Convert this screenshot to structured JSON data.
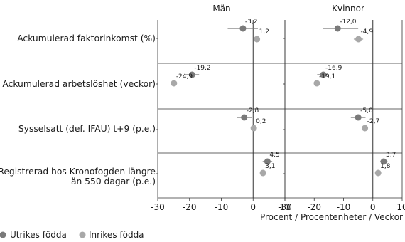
{
  "chart_data": {
    "type": "scatter",
    "panels": [
      "Män",
      "Kvinnor"
    ],
    "rows": [
      [
        "Ackumulerad faktorinkomst (%)"
      ],
      [
        "Ackumulerad arbetslöshet (veckor)"
      ],
      [
        "Sysselsatt (def. IFAU) t+9 (p.e.)"
      ],
      [
        "Registrerad hos Kronofogden längre",
        "än 550 dagar (p.e.)"
      ]
    ],
    "series": [
      {
        "name": "Utrikes födda",
        "color": "#7a7a7a",
        "values": [
          [
            -3.2,
            -12.0
          ],
          [
            -19.2,
            -16.9
          ],
          [
            -2.8,
            -5.0
          ],
          [
            4.5,
            3.7
          ]
        ],
        "labels": [
          [
            "-3,2",
            "-12,0"
          ],
          [
            "-19,2",
            "-16,9"
          ],
          [
            "-2,8",
            "-5,0"
          ],
          [
            "4,5",
            "3,7"
          ]
        ],
        "ci": [
          [
            [
              -8,
              1.5
            ],
            [
              -17,
              -5
            ]
          ],
          [
            [
              -21.5,
              -17
            ],
            [
              -19,
              -15
            ]
          ],
          [
            [
              -5,
              -0.5
            ],
            [
              -7.5,
              -2.5
            ]
          ],
          [
            [
              3,
              6
            ],
            [
              2.5,
              5
            ]
          ]
        ]
      },
      {
        "name": "Inrikes födda",
        "color": "#a8a8a8",
        "values": [
          [
            1.2,
            -4.9
          ],
          [
            -24.9,
            -19.1
          ],
          [
            0.2,
            -2.7
          ],
          [
            3.1,
            1.8
          ]
        ],
        "labels": [
          [
            "1,2",
            "-4,9"
          ],
          [
            "-24,9",
            "-19,1"
          ],
          [
            "0,2",
            "-2,7"
          ],
          [
            "3,1",
            "1,8"
          ]
        ],
        "ci": [
          [
            [
              0.3,
              2.1
            ],
            [
              -6.5,
              -3.3
            ]
          ],
          [
            [
              -25.7,
              -24.1
            ],
            [
              -19.9,
              -18.3
            ]
          ],
          [
            [
              -0.6,
              1.0
            ],
            [
              -3.5,
              -1.9
            ]
          ],
          [
            [
              2.3,
              3.9
            ],
            [
              1.0,
              2.6
            ]
          ]
        ]
      }
    ],
    "xticks": [
      -30,
      -20,
      -10,
      0,
      10
    ],
    "xlim": [
      -30,
      10
    ],
    "xlabel": "Procent / Procentenheter / Veckor",
    "legend_position": "bottom-left",
    "grid": false
  }
}
